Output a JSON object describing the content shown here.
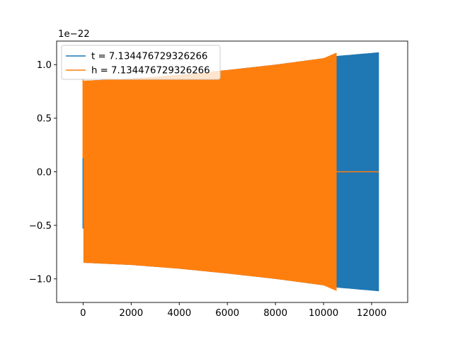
{
  "chart_data": {
    "type": "line",
    "title": "",
    "xlabel": "",
    "ylabel": "",
    "y_offset_label": "1e−22",
    "xlim": [
      -1100,
      13500
    ],
    "ylim": [
      -1.22,
      1.22
    ],
    "x_ticks": [
      0,
      2000,
      4000,
      6000,
      8000,
      10000,
      12000
    ],
    "y_ticks": [
      -1.0,
      -0.5,
      0.0,
      0.5,
      1.0
    ],
    "x_tick_labels": [
      "0",
      "2000",
      "4000",
      "6000",
      "8000",
      "10000",
      "12000"
    ],
    "y_tick_labels": [
      "−1.0",
      "−0.5",
      "0.0",
      "0.5",
      "1.0"
    ],
    "grid": false,
    "legend_placement": "upper-left",
    "series": [
      {
        "name": "t = 7.134476729326266",
        "color": "#1f77b4",
        "style": "dense oscillation envelope",
        "x_start": 0,
        "x_end": 12290,
        "envelope_upper": [
          [
            0,
            0.13
          ],
          [
            30,
            0.85
          ],
          [
            2000,
            0.87
          ],
          [
            4000,
            0.905
          ],
          [
            6000,
            0.95
          ],
          [
            8000,
            1.0
          ],
          [
            10000,
            1.06
          ],
          [
            10500,
            1.08
          ],
          [
            12290,
            1.115
          ]
        ],
        "envelope_lower": [
          [
            0,
            -0.53
          ],
          [
            30,
            -0.85
          ],
          [
            2000,
            -0.87
          ],
          [
            4000,
            -0.905
          ],
          [
            6000,
            -0.95
          ],
          [
            8000,
            -1.0
          ],
          [
            10000,
            -1.06
          ],
          [
            10500,
            -1.08
          ],
          [
            12290,
            -1.115
          ]
        ]
      },
      {
        "name": "h = 7.134476729326266",
        "color": "#ff7f0e",
        "style": "dense oscillation envelope then zero",
        "x_start": 0,
        "x_active_end": 10520,
        "x_end": 12290,
        "envelope_upper": [
          [
            0,
            0.87
          ],
          [
            30,
            0.85
          ],
          [
            2000,
            0.87
          ],
          [
            4000,
            0.905
          ],
          [
            6000,
            0.95
          ],
          [
            8000,
            1.0
          ],
          [
            10000,
            1.06
          ],
          [
            10520,
            1.11
          ]
        ],
        "envelope_lower": [
          [
            0,
            0.13
          ],
          [
            30,
            -0.85
          ],
          [
            2000,
            -0.87
          ],
          [
            4000,
            -0.905
          ],
          [
            6000,
            -0.95
          ],
          [
            8000,
            -1.0
          ],
          [
            10000,
            -1.06
          ],
          [
            10520,
            -1.11
          ]
        ],
        "zero_after": 0.0
      }
    ]
  }
}
